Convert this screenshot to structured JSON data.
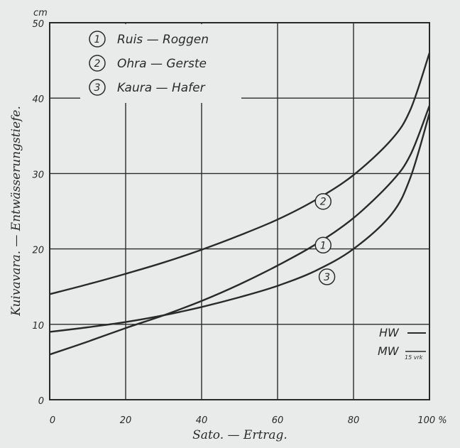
{
  "chart_data": {
    "type": "line",
    "unit_label": "cm",
    "xlabel": "Sato. — Ertrag.",
    "ylabel": "Kuivavara. — Entwässerungstiefe.",
    "xlim": [
      0,
      100
    ],
    "ylim": [
      0,
      50
    ],
    "x_ticks": [
      "0",
      "20",
      "40",
      "60",
      "80",
      "100 %"
    ],
    "y_ticks": [
      "0",
      "10",
      "20",
      "30",
      "40",
      "50"
    ],
    "grid": true,
    "legend": [
      {
        "num": "1",
        "text": "Ruis — Roggen"
      },
      {
        "num": "2",
        "text": "Ohra — Gerste"
      },
      {
        "num": "3",
        "text": "Kaura — Hafer"
      }
    ],
    "series": [
      {
        "label": "1",
        "x": [
          0,
          10,
          20,
          30,
          40,
          50,
          60,
          70,
          80,
          90,
          95,
          100
        ],
        "y": [
          6,
          7.7,
          9.5,
          11.2,
          13.1,
          15.3,
          17.8,
          20.6,
          24.1,
          28.9,
          32.5,
          39
        ]
      },
      {
        "label": "2",
        "x": [
          0,
          10,
          20,
          30,
          40,
          50,
          60,
          70,
          80,
          90,
          95,
          100
        ],
        "y": [
          14,
          15.3,
          16.7,
          18.2,
          19.9,
          21.8,
          23.9,
          26.5,
          29.8,
          34.5,
          38.5,
          46
        ]
      },
      {
        "label": "3",
        "x": [
          0,
          10,
          20,
          30,
          40,
          50,
          60,
          70,
          80,
          90,
          95,
          100
        ],
        "y": [
          9,
          9.6,
          10.3,
          11.2,
          12.3,
          13.6,
          15.1,
          17.1,
          20,
          24.6,
          29.5,
          38
        ]
      }
    ],
    "curve_labels": [
      {
        "num": "2",
        "x": 72,
        "y": 26.3
      },
      {
        "num": "1",
        "x": 72,
        "y": 20.5
      },
      {
        "num": "3",
        "x": 73,
        "y": 16.3
      }
    ],
    "water_levels": [
      {
        "text": "HW",
        "sub": ""
      },
      {
        "text": "MW",
        "sub": "15 vrk"
      }
    ]
  }
}
